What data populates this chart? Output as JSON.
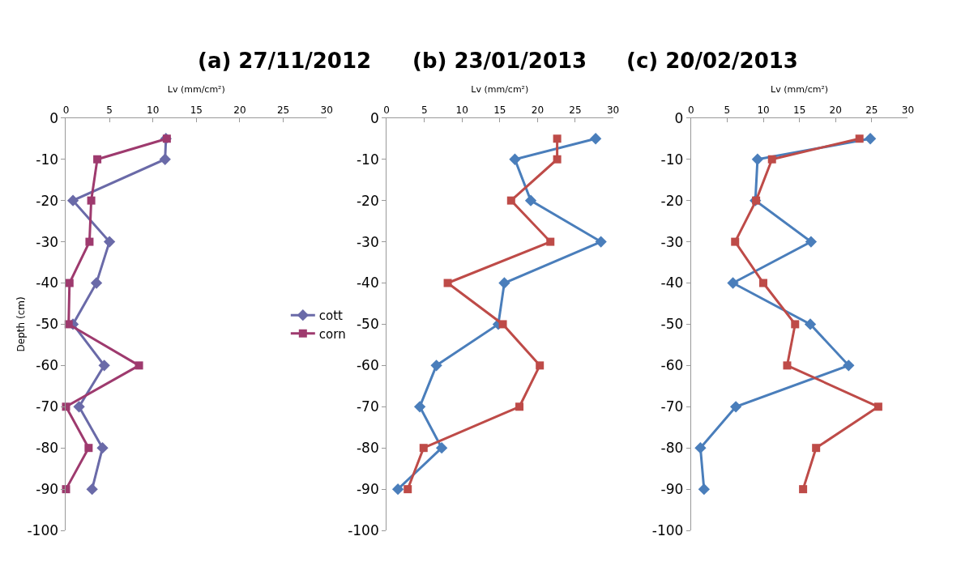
{
  "chart_data": [
    {
      "type": "line",
      "title": "(a) 27/11/2012",
      "xlabel": "Lv (mm/cm²)",
      "ylabel": "Depth (cm)",
      "legend": "right",
      "xlim": [
        0,
        30
      ],
      "xticks": [
        0,
        5,
        10,
        15,
        20,
        25,
        30
      ],
      "ylim": [
        -100,
        0
      ],
      "yticks": [
        -100,
        -90,
        -80,
        -70,
        -60,
        -50,
        -40,
        -30,
        -20,
        -10,
        0
      ],
      "series": [
        {
          "name": "cott",
          "color": "#6a6aa8",
          "marker": "diamond",
          "x": [
            11.5,
            11.4,
            0.8,
            5.0,
            3.5,
            0.8,
            4.4,
            1.5,
            4.2,
            3.0
          ],
          "values": [
            -5,
            -10,
            -20,
            -30,
            -40,
            -50,
            -60,
            -70,
            -80,
            -90
          ]
        },
        {
          "name": "corn",
          "color": "#9e3a6e",
          "marker": "square",
          "x": [
            11.6,
            3.6,
            2.9,
            2.7,
            0.4,
            0.3,
            8.4,
            0,
            2.6,
            0
          ],
          "values": [
            -5,
            -10,
            -20,
            -30,
            -40,
            -50,
            -60,
            -70,
            -80,
            -90
          ]
        }
      ]
    },
    {
      "type": "line",
      "title": "(b) 23/01/2013",
      "xlabel": "Lv (mm/cm²)",
      "xlim": [
        0,
        30
      ],
      "xticks": [
        0,
        5,
        10,
        15,
        20,
        25,
        30
      ],
      "ylim": [
        -100,
        0
      ],
      "yticks": [
        -100,
        -90,
        -80,
        -70,
        -60,
        -50,
        -40,
        -30,
        -20,
        -10,
        0
      ],
      "series": [
        {
          "color": "#4a7ebb",
          "marker": "diamond",
          "x": [
            27.7,
            17.0,
            19.1,
            28.4,
            15.6,
            14.8,
            6.6,
            4.4,
            7.3,
            1.5
          ],
          "values": [
            -5,
            -10,
            -20,
            -30,
            -40,
            -50,
            -60,
            -70,
            -80,
            -90
          ]
        },
        {
          "color": "#be4b48",
          "marker": "square",
          "x": [
            22.6,
            22.6,
            16.5,
            21.7,
            8.1,
            15.4,
            20.3,
            17.6,
            4.9,
            2.8
          ],
          "values": [
            -5,
            -10,
            -20,
            -30,
            -40,
            -50,
            -60,
            -70,
            -80,
            -90
          ]
        }
      ]
    },
    {
      "type": "line",
      "title": "(c) 20/02/2013",
      "xlabel": "Lv (mm/cm²)",
      "xlim": [
        0,
        30
      ],
      "xticks": [
        0,
        5,
        10,
        15,
        20,
        25,
        30
      ],
      "ylim": [
        -100,
        0
      ],
      "yticks": [
        -100,
        -90,
        -80,
        -70,
        -60,
        -50,
        -40,
        -30,
        -20,
        -10,
        0
      ],
      "series": [
        {
          "color": "#4a7ebb",
          "marker": "diamond",
          "x": [
            24.8,
            9.2,
            8.9,
            16.6,
            5.8,
            16.5,
            21.8,
            6.2,
            1.3,
            1.8
          ],
          "values": [
            -5,
            -10,
            -20,
            -30,
            -40,
            -50,
            -60,
            -70,
            -80,
            -90
          ]
        },
        {
          "color": "#be4b48",
          "marker": "square",
          "x": [
            23.3,
            11.2,
            9.0,
            6.1,
            10.0,
            14.4,
            13.3,
            25.9,
            17.3,
            15.5
          ],
          "values": [
            -5,
            -10,
            -20,
            -30,
            -40,
            -50,
            -60,
            -70,
            -80,
            -90
          ]
        }
      ]
    }
  ]
}
